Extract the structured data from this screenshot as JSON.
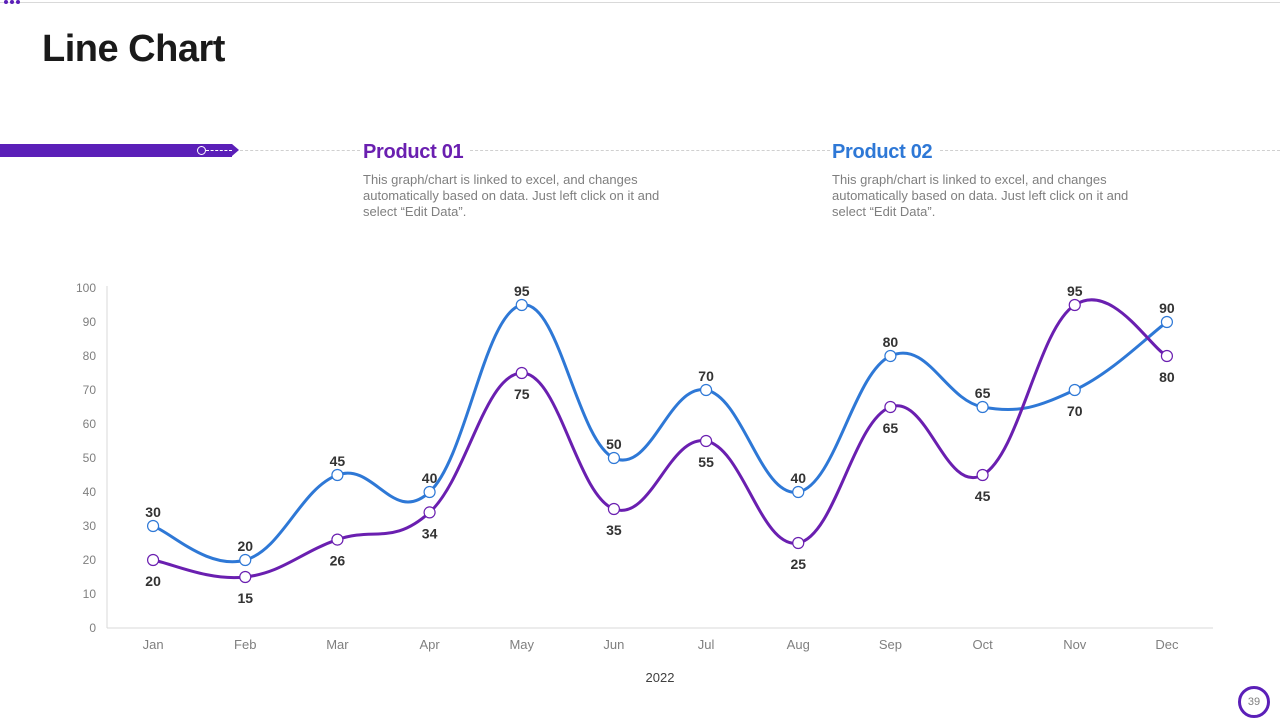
{
  "title": "Line Chart",
  "accent_color": "#5b1fb8",
  "products": [
    {
      "name": "Product 01",
      "color": "#6a1fb0",
      "description": "This graph/chart is linked to excel, and changes automatically based on data. Just left click on it and select “Edit Data”."
    },
    {
      "name": "Product 02",
      "color": "#2e78d6",
      "description": "This graph/chart is linked to excel, and changes automatically based on data. Just left click on it and select “Edit Data”."
    }
  ],
  "chart_data": {
    "type": "line",
    "title": "",
    "xlabel": "2022",
    "ylabel": "",
    "ylim": [
      0,
      100
    ],
    "yticks": [
      0,
      10,
      20,
      30,
      40,
      50,
      60,
      70,
      80,
      90,
      100
    ],
    "categories": [
      "Jan",
      "Feb",
      "Mar",
      "Apr",
      "May",
      "Jun",
      "Jul",
      "Aug",
      "Sep",
      "Oct",
      "Nov",
      "Dec"
    ],
    "series": [
      {
        "name": "Product 01",
        "color": "#6a1fb0",
        "values": [
          20,
          15,
          26,
          34,
          75,
          35,
          55,
          25,
          65,
          45,
          95,
          80
        ]
      },
      {
        "name": "Product 02",
        "color": "#2e78d6",
        "values": [
          30,
          20,
          45,
          40,
          95,
          50,
          70,
          40,
          80,
          65,
          70,
          90
        ]
      }
    ]
  },
  "page_number": "39"
}
